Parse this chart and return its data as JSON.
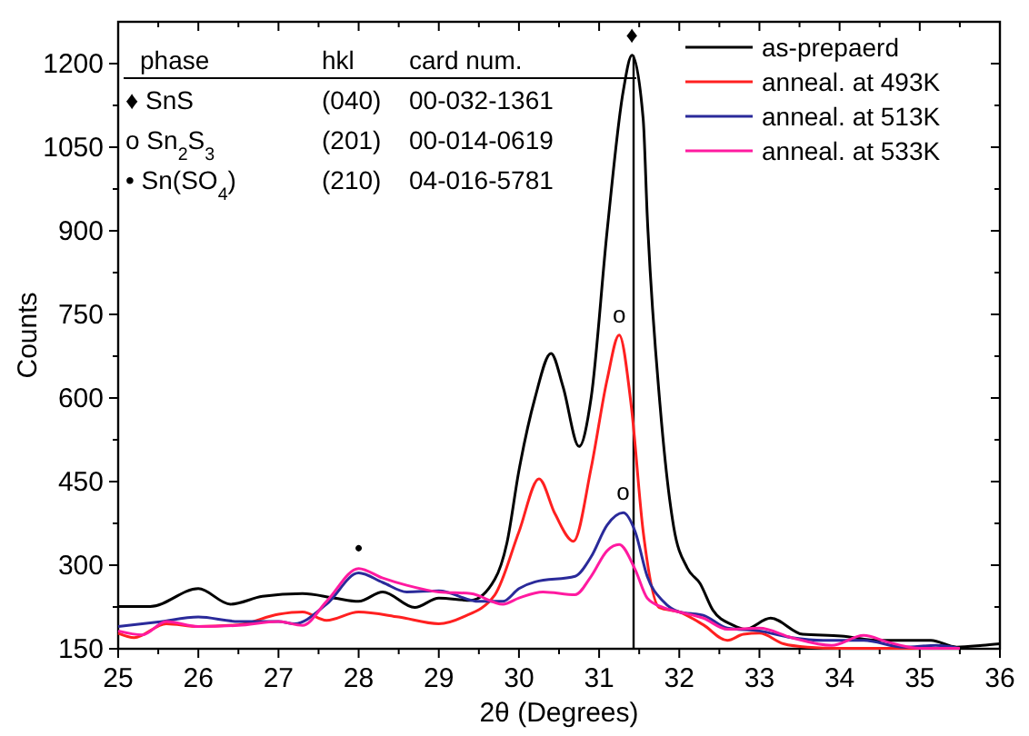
{
  "chart_data": {
    "type": "line",
    "xlabel": "2θ (Degrees)",
    "ylabel": "Counts",
    "xlim": [
      25,
      36
    ],
    "xticks": [
      25,
      26,
      27,
      28,
      29,
      30,
      31,
      32,
      33,
      34,
      35,
      36
    ],
    "ylim": [
      150,
      1275
    ],
    "yticks": [
      150,
      300,
      450,
      600,
      750,
      900,
      1050,
      1200
    ],
    "legend": "top right",
    "grid": false,
    "line_style": "solid",
    "series": [
      {
        "name": "as-prepaerd",
        "color": "#000000",
        "x": [
          25,
          25.4,
          26,
          26.4,
          26.8,
          27.3,
          27.7,
          28,
          28.3,
          28.7,
          29,
          29.4,
          29.7,
          29.85,
          30,
          30.2,
          30.4,
          30.55,
          30.75,
          30.9,
          31.1,
          31.3,
          31.41,
          31.55,
          31.6,
          31.76,
          31.93,
          32.1,
          32.26,
          32.42,
          32.66,
          32.82,
          33.14,
          33.54,
          34.02,
          34.5,
          35.14,
          35.46,
          35.78,
          36
        ],
        "values": [
          226,
          226,
          258,
          230,
          244,
          249,
          241,
          235,
          252,
          224,
          241,
          237,
          275,
          340,
          470,
          600,
          680,
          620,
          513,
          600,
          900,
          1150,
          1215,
          1100,
          928,
          587,
          369,
          295,
          267,
          219,
          193,
          185,
          205,
          176,
          173,
          165,
          165,
          153,
          156,
          159
        ]
      },
      {
        "name": "anneal. at 493K",
        "color": "#ff2020",
        "x": [
          25,
          25.2,
          25.6,
          26,
          26.5,
          27,
          27.3,
          27.6,
          28,
          28.5,
          29,
          29.3,
          29.7,
          30,
          30.25,
          30.45,
          30.68,
          30.9,
          31.1,
          31.25,
          31.4,
          31.55,
          31.75,
          32,
          32.3,
          32.6,
          32.8,
          33,
          33.3,
          33.6,
          34,
          34.5,
          35,
          35.5
        ],
        "values": [
          178,
          170,
          195,
          190,
          193,
          212,
          216,
          201,
          216,
          207,
          195,
          207,
          247,
          360,
          455,
          392,
          343,
          474,
          633,
          713,
          587,
          360,
          224,
          216,
          193,
          165,
          176,
          178,
          159,
          153,
          151,
          151,
          151,
          151
        ]
      },
      {
        "name": "anneal. at 513K",
        "color": "#2a2a9a",
        "x": [
          25,
          25.5,
          26,
          26.5,
          27,
          27.2,
          27.6,
          28,
          28.3,
          28.6,
          29,
          29.5,
          29.8,
          30,
          30.2,
          30.7,
          30.9,
          31.1,
          31.3,
          31.45,
          31.6,
          31.8,
          32,
          32.3,
          32.6,
          33,
          33.4,
          33.8,
          34.3,
          34.8,
          35.2,
          35.5
        ],
        "values": [
          190,
          198,
          207,
          199,
          199,
          195,
          230,
          286,
          269,
          252,
          254,
          235,
          235,
          258,
          270,
          280,
          315,
          372,
          394,
          360,
          280,
          235,
          216,
          210,
          187,
          182,
          170,
          165,
          165,
          153,
          156,
          151
        ]
      },
      {
        "name": "anneal. at 533K",
        "color": "#ff1aa0",
        "x": [
          25,
          25.3,
          25.6,
          26,
          26.5,
          27,
          27.3,
          27.6,
          28,
          28.3,
          28.6,
          29,
          29.4,
          29.8,
          30,
          30.3,
          30.7,
          30.9,
          31.1,
          31.25,
          31.45,
          31.6,
          31.8,
          32,
          32.3,
          32.6,
          33,
          33.4,
          33.9,
          34.3,
          34.6,
          35,
          35.5
        ],
        "values": [
          182,
          175,
          199,
          190,
          192,
          199,
          192,
          235,
          294,
          277,
          264,
          252,
          249,
          230,
          241,
          252,
          247,
          280,
          326,
          337,
          292,
          241,
          224,
          216,
          205,
          185,
          187,
          170,
          156,
          174,
          162,
          151,
          151
        ]
      }
    ],
    "ref_lines": [
      {
        "axis": "x",
        "value": 31.43,
        "color": "#000000"
      }
    ],
    "annotations": [
      "phase",
      "hkl",
      "card num.",
      "♦ SnS",
      "(040)",
      "00-032-1361",
      "o Sn$_{2}$S$_{3}$",
      "(201)",
      "00-014-0619",
      "• Sn(SO$_{4}$)",
      "(210)",
      "04-016-5781",
      {
        "text": "♦",
        "x": 31.41,
        "y": 1215
      },
      {
        "text": "o",
        "x": 31.25,
        "y": 713
      },
      {
        "text": "o",
        "x": 31.3,
        "y": 394
      },
      {
        "text": "•",
        "x": 28,
        "y": 294
      }
    ]
  }
}
